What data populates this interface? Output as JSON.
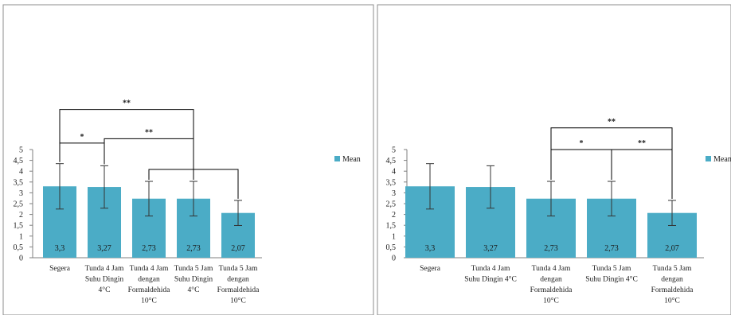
{
  "colors": {
    "bar": "#4bacc6",
    "axis": "#7f7f7f",
    "frame": "#8c8c8c",
    "line": "#000000"
  },
  "chart_data": [
    {
      "type": "bar",
      "categories": [
        [
          "Segera"
        ],
        [
          "Tunda 4 Jam",
          "Suhu Dingin",
          "4°C"
        ],
        [
          "Tunda 4 Jam",
          "dengan",
          "Formaldehida",
          "10°C"
        ],
        [
          "Tunda 5 Jam",
          "Suhu Dingin",
          "4°C"
        ],
        [
          "Tunda 5 Jam",
          "dengan",
          "Formaldehida",
          "10°C"
        ]
      ],
      "series": [
        {
          "name": "Mean",
          "values": [
            3.3,
            3.27,
            2.73,
            2.73,
            2.07
          ],
          "errors": [
            1.05,
            0.98,
            0.8,
            0.8,
            0.58
          ]
        }
      ],
      "data_labels": [
        "3,3",
        "3,27",
        "2,73",
        "2,73",
        "2,07"
      ],
      "y_ticks": [
        "0",
        "0,5",
        "1",
        "1,5",
        "2",
        "2,5",
        "3",
        "3,5",
        "4",
        "4,5",
        "5"
      ],
      "ylim": [
        0,
        5
      ],
      "legend": "right",
      "significance": [
        {
          "label": "**",
          "from": 0,
          "to": 3,
          "level": 6.85
        },
        {
          "label": "*",
          "from": 0,
          "to": 1,
          "level": 5.3
        },
        {
          "label": "**",
          "from": 1,
          "to": 3,
          "level": 5.5
        },
        {
          "label": "",
          "from": 2,
          "to": 4,
          "level": 4.08
        }
      ]
    },
    {
      "type": "bar",
      "categories": [
        [
          "Segera"
        ],
        [
          "Tunda 4 Jam",
          "Suhu Dingin 4°C"
        ],
        [
          "Tunda 4 Jam",
          "dengan",
          "Formaldehida",
          "10°C"
        ],
        [
          "Tunda 5 Jam",
          "Suhu Dingin 4°C"
        ],
        [
          "Tunda 5 Jam",
          "dengan",
          "Formaldehida",
          "10°C"
        ]
      ],
      "series": [
        {
          "name": "Mean",
          "values": [
            3.3,
            3.27,
            2.73,
            2.73,
            2.07
          ],
          "errors": [
            1.05,
            0.98,
            0.8,
            0.8,
            0.58
          ]
        }
      ],
      "data_labels": [
        "3,3",
        "3,27",
        "2,73",
        "2,73",
        "2,07"
      ],
      "y_ticks": [
        "0",
        "0,5",
        "1",
        "1,5",
        "2",
        "2,5",
        "3",
        "3,5",
        "4",
        "4,5",
        "5"
      ],
      "ylim": [
        0,
        5
      ],
      "legend": "right",
      "significance": [
        {
          "label": "**",
          "from": 2,
          "to": 4,
          "level": 6
        },
        {
          "label": "*",
          "from": 2,
          "to": 3,
          "level": 5
        },
        {
          "label": "**",
          "from": 3,
          "to": 4,
          "level": 5
        }
      ]
    }
  ]
}
